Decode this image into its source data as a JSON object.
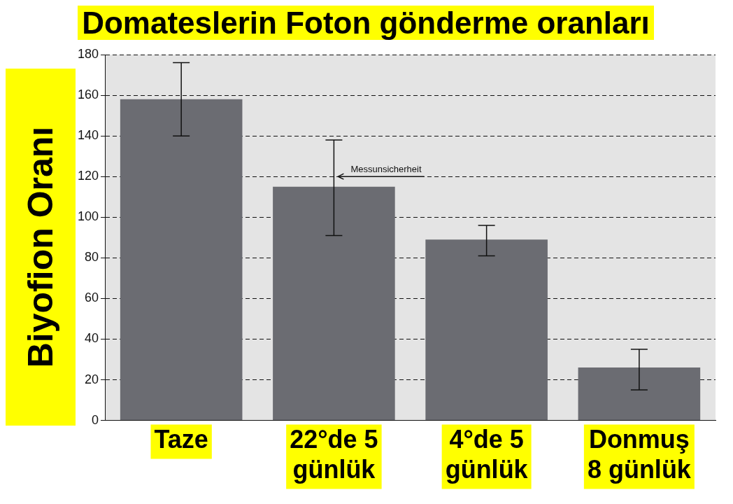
{
  "chart_data": {
    "type": "bar",
    "title": "Domateslerin Foton gönderme oranları",
    "ylabel": "Biyofion Oranı",
    "categories": [
      "Taze",
      "22°de 5\ngünlük",
      "4°de 5\ngünlük",
      "Donmuş\n8 günlük"
    ],
    "values": [
      158,
      115,
      89,
      26
    ],
    "color": "#6b6c72",
    "errors": [
      [
        140,
        176
      ],
      [
        91,
        138
      ],
      [
        81,
        96
      ],
      [
        15,
        35
      ]
    ],
    "ylim": [
      0,
      180
    ],
    "yticks": [
      0,
      20,
      40,
      60,
      80,
      100,
      120,
      140,
      160,
      180
    ],
    "grid": "y",
    "line_style": "dashed",
    "annotations": [
      {
        "text": "Messunsicherheit",
        "x": "22°de 5\ngünlük",
        "y": 120
      }
    ]
  }
}
